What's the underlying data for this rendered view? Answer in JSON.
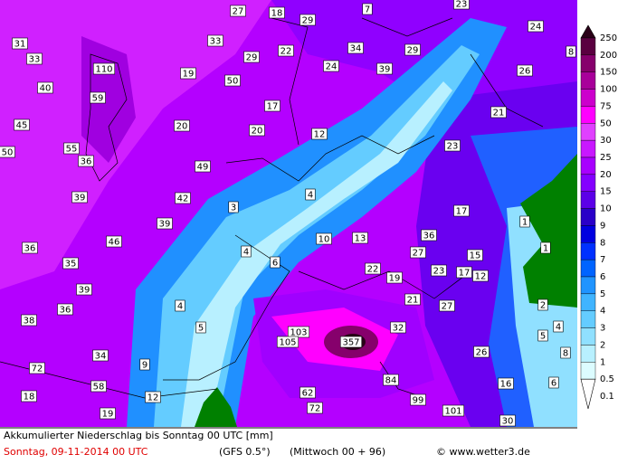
{
  "map": {
    "labels": [
      27,
      18,
      29,
      7,
      23,
      24,
      31,
      33,
      22,
      34,
      29,
      8,
      33,
      110,
      29,
      24,
      39,
      26,
      19,
      50,
      40,
      59,
      17,
      21,
      45,
      20,
      20,
      12,
      50,
      55,
      23,
      36,
      49,
      42,
      4,
      39,
      3,
      17,
      39,
      1,
      36,
      46,
      10,
      13,
      36,
      27,
      4,
      15,
      1,
      35,
      6,
      22,
      23,
      17,
      12,
      19,
      39,
      21,
      4,
      27,
      2,
      36,
      38,
      5,
      103,
      32,
      4,
      5,
      105,
      357,
      26,
      8,
      34,
      9,
      72,
      84,
      16,
      6,
      58,
      62,
      18,
      12,
      99,
      72,
      101,
      19,
      30
    ]
  },
  "legend": {
    "levels": [
      {
        "value": 250,
        "color": "#2a0018"
      },
      {
        "value": 200,
        "color": "#5a0040"
      },
      {
        "value": 150,
        "color": "#86006c"
      },
      {
        "value": 100,
        "color": "#a8009a"
      },
      {
        "value": 75,
        "color": "#cc00cc"
      },
      {
        "value": 50,
        "color": "#ff00ff"
      },
      {
        "value": 30,
        "color": "#e040ff"
      },
      {
        "value": 25,
        "color": "#c818ff"
      },
      {
        "value": 20,
        "color": "#a800ff"
      },
      {
        "value": 15,
        "color": "#8400ff"
      },
      {
        "value": 10,
        "color": "#5c00e8"
      },
      {
        "value": 9,
        "color": "#2a00c8"
      },
      {
        "value": 8,
        "color": "#0000e0"
      },
      {
        "value": 7,
        "color": "#0030ff"
      },
      {
        "value": 6,
        "color": "#0064ff"
      },
      {
        "value": 5,
        "color": "#2094ff"
      },
      {
        "value": 4,
        "color": "#40b4ff"
      },
      {
        "value": 3,
        "color": "#64ccff"
      },
      {
        "value": 2,
        "color": "#90e0ff"
      },
      {
        "value": 1,
        "color": "#b8f0ff"
      },
      {
        "value": 0.5,
        "color": "#dcfcff"
      },
      {
        "value": 0.1,
        "color": "#ffffff"
      }
    ]
  },
  "footer": {
    "title": "Akkumulierter Niederschlag bis Sonntag 00 UTC [mm]",
    "date": "Sonntag, 09-11-2014  00 UTC",
    "model": "(GFS 0.5°)",
    "run": "(Mittwoch 00 + 96)",
    "credit": "© www.wetter3.de"
  }
}
